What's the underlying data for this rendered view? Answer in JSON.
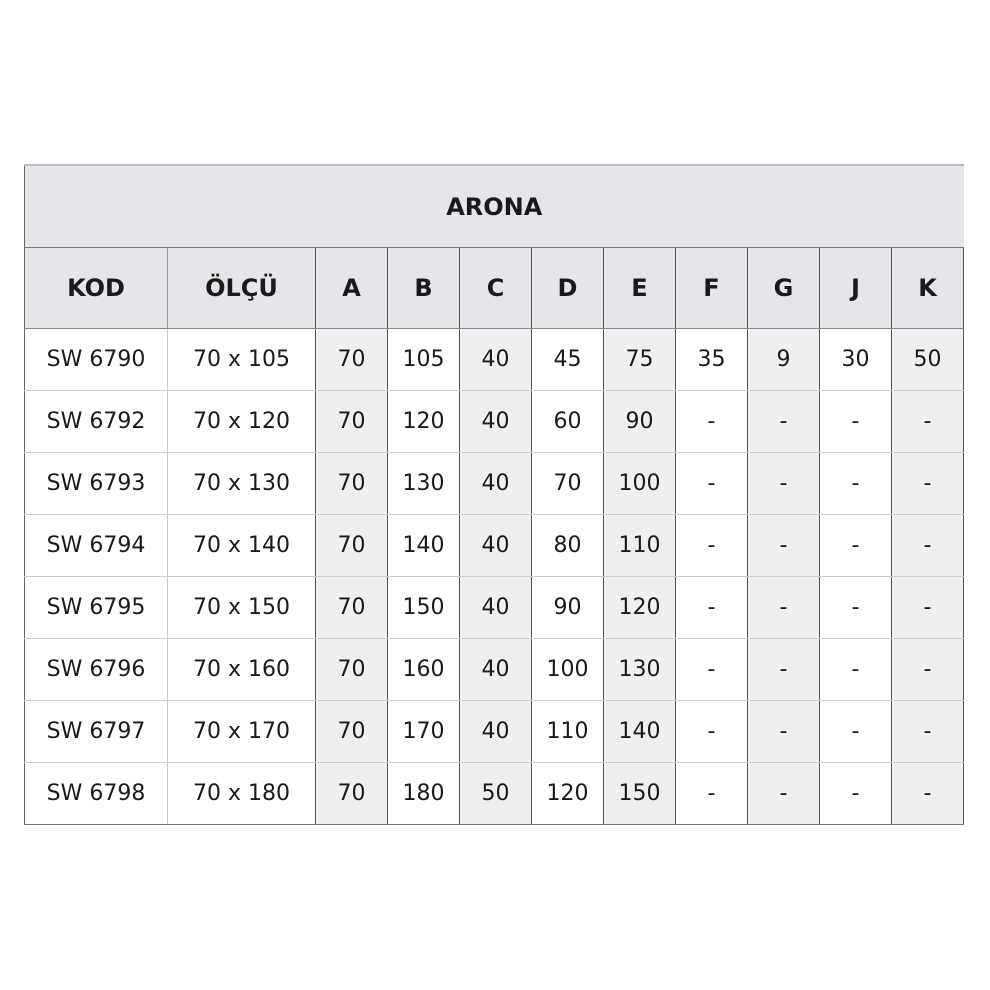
{
  "title": "ARONA",
  "columns": [
    "KOD",
    "ÖLÇÜ",
    "A",
    "B",
    "C",
    "D",
    "E",
    "F",
    "G",
    "J",
    "K"
  ],
  "rows": [
    [
      "SW 6790",
      "70 x 105",
      "70",
      "105",
      "40",
      "45",
      "75",
      "35",
      "9",
      "30",
      "50"
    ],
    [
      "SW 6792",
      "70 x 120",
      "70",
      "120",
      "40",
      "60",
      "90",
      "-",
      "-",
      "-",
      "-"
    ],
    [
      "SW 6793",
      "70 x 130",
      "70",
      "130",
      "40",
      "70",
      "100",
      "-",
      "-",
      "-",
      "-"
    ],
    [
      "SW 6794",
      "70 x 140",
      "70",
      "140",
      "40",
      "80",
      "110",
      "-",
      "-",
      "-",
      "-"
    ],
    [
      "SW 6795",
      "70 x 150",
      "70",
      "150",
      "40",
      "90",
      "120",
      "-",
      "-",
      "-",
      "-"
    ],
    [
      "SW 6796",
      "70 x 160",
      "70",
      "160",
      "40",
      "100",
      "130",
      "-",
      "-",
      "-",
      "-"
    ],
    [
      "SW 6797",
      "70 x 170",
      "70",
      "170",
      "40",
      "110",
      "140",
      "-",
      "-",
      "-",
      "-"
    ],
    [
      "SW 6798",
      "70 x 180",
      "70",
      "180",
      "50",
      "120",
      "150",
      "-",
      "-",
      "-",
      "-"
    ]
  ]
}
